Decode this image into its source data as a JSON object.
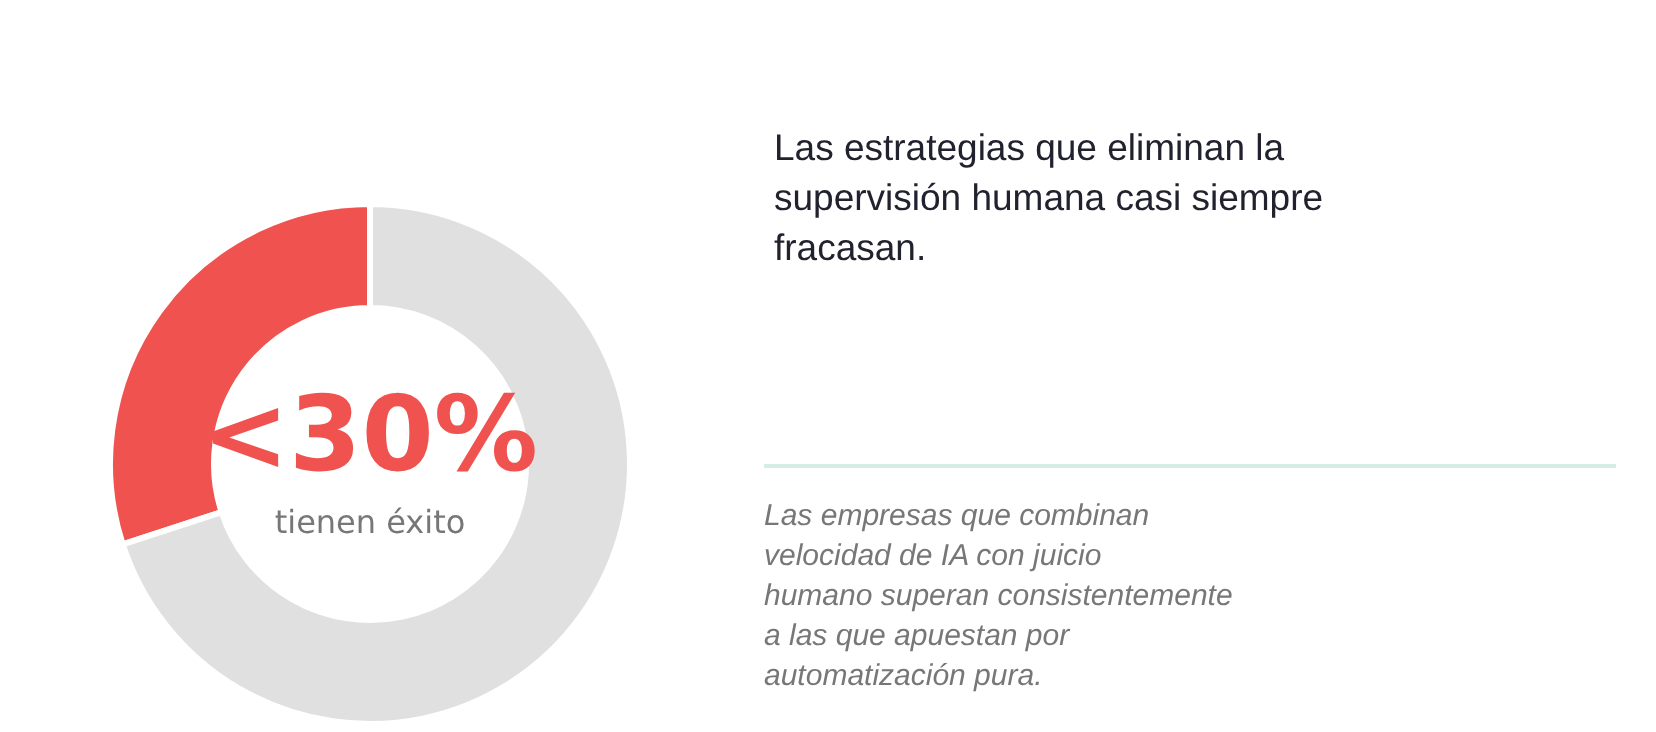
{
  "chart_data": {
    "type": "donut",
    "title": "Las estrategias que eliminan la supervisión humana casi siempre fracasan.",
    "categories": [
      null,
      null
    ],
    "values": [
      30,
      70
    ],
    "colors": [
      "#f0524f",
      "#e0e0e0"
    ],
    "annotations": [
      "<30%",
      "tienen éxito",
      "Las empresas que combinan velocidad de IA con juicio humano superan consistentemente a las que apuestan por automatización pura."
    ]
  }
}
